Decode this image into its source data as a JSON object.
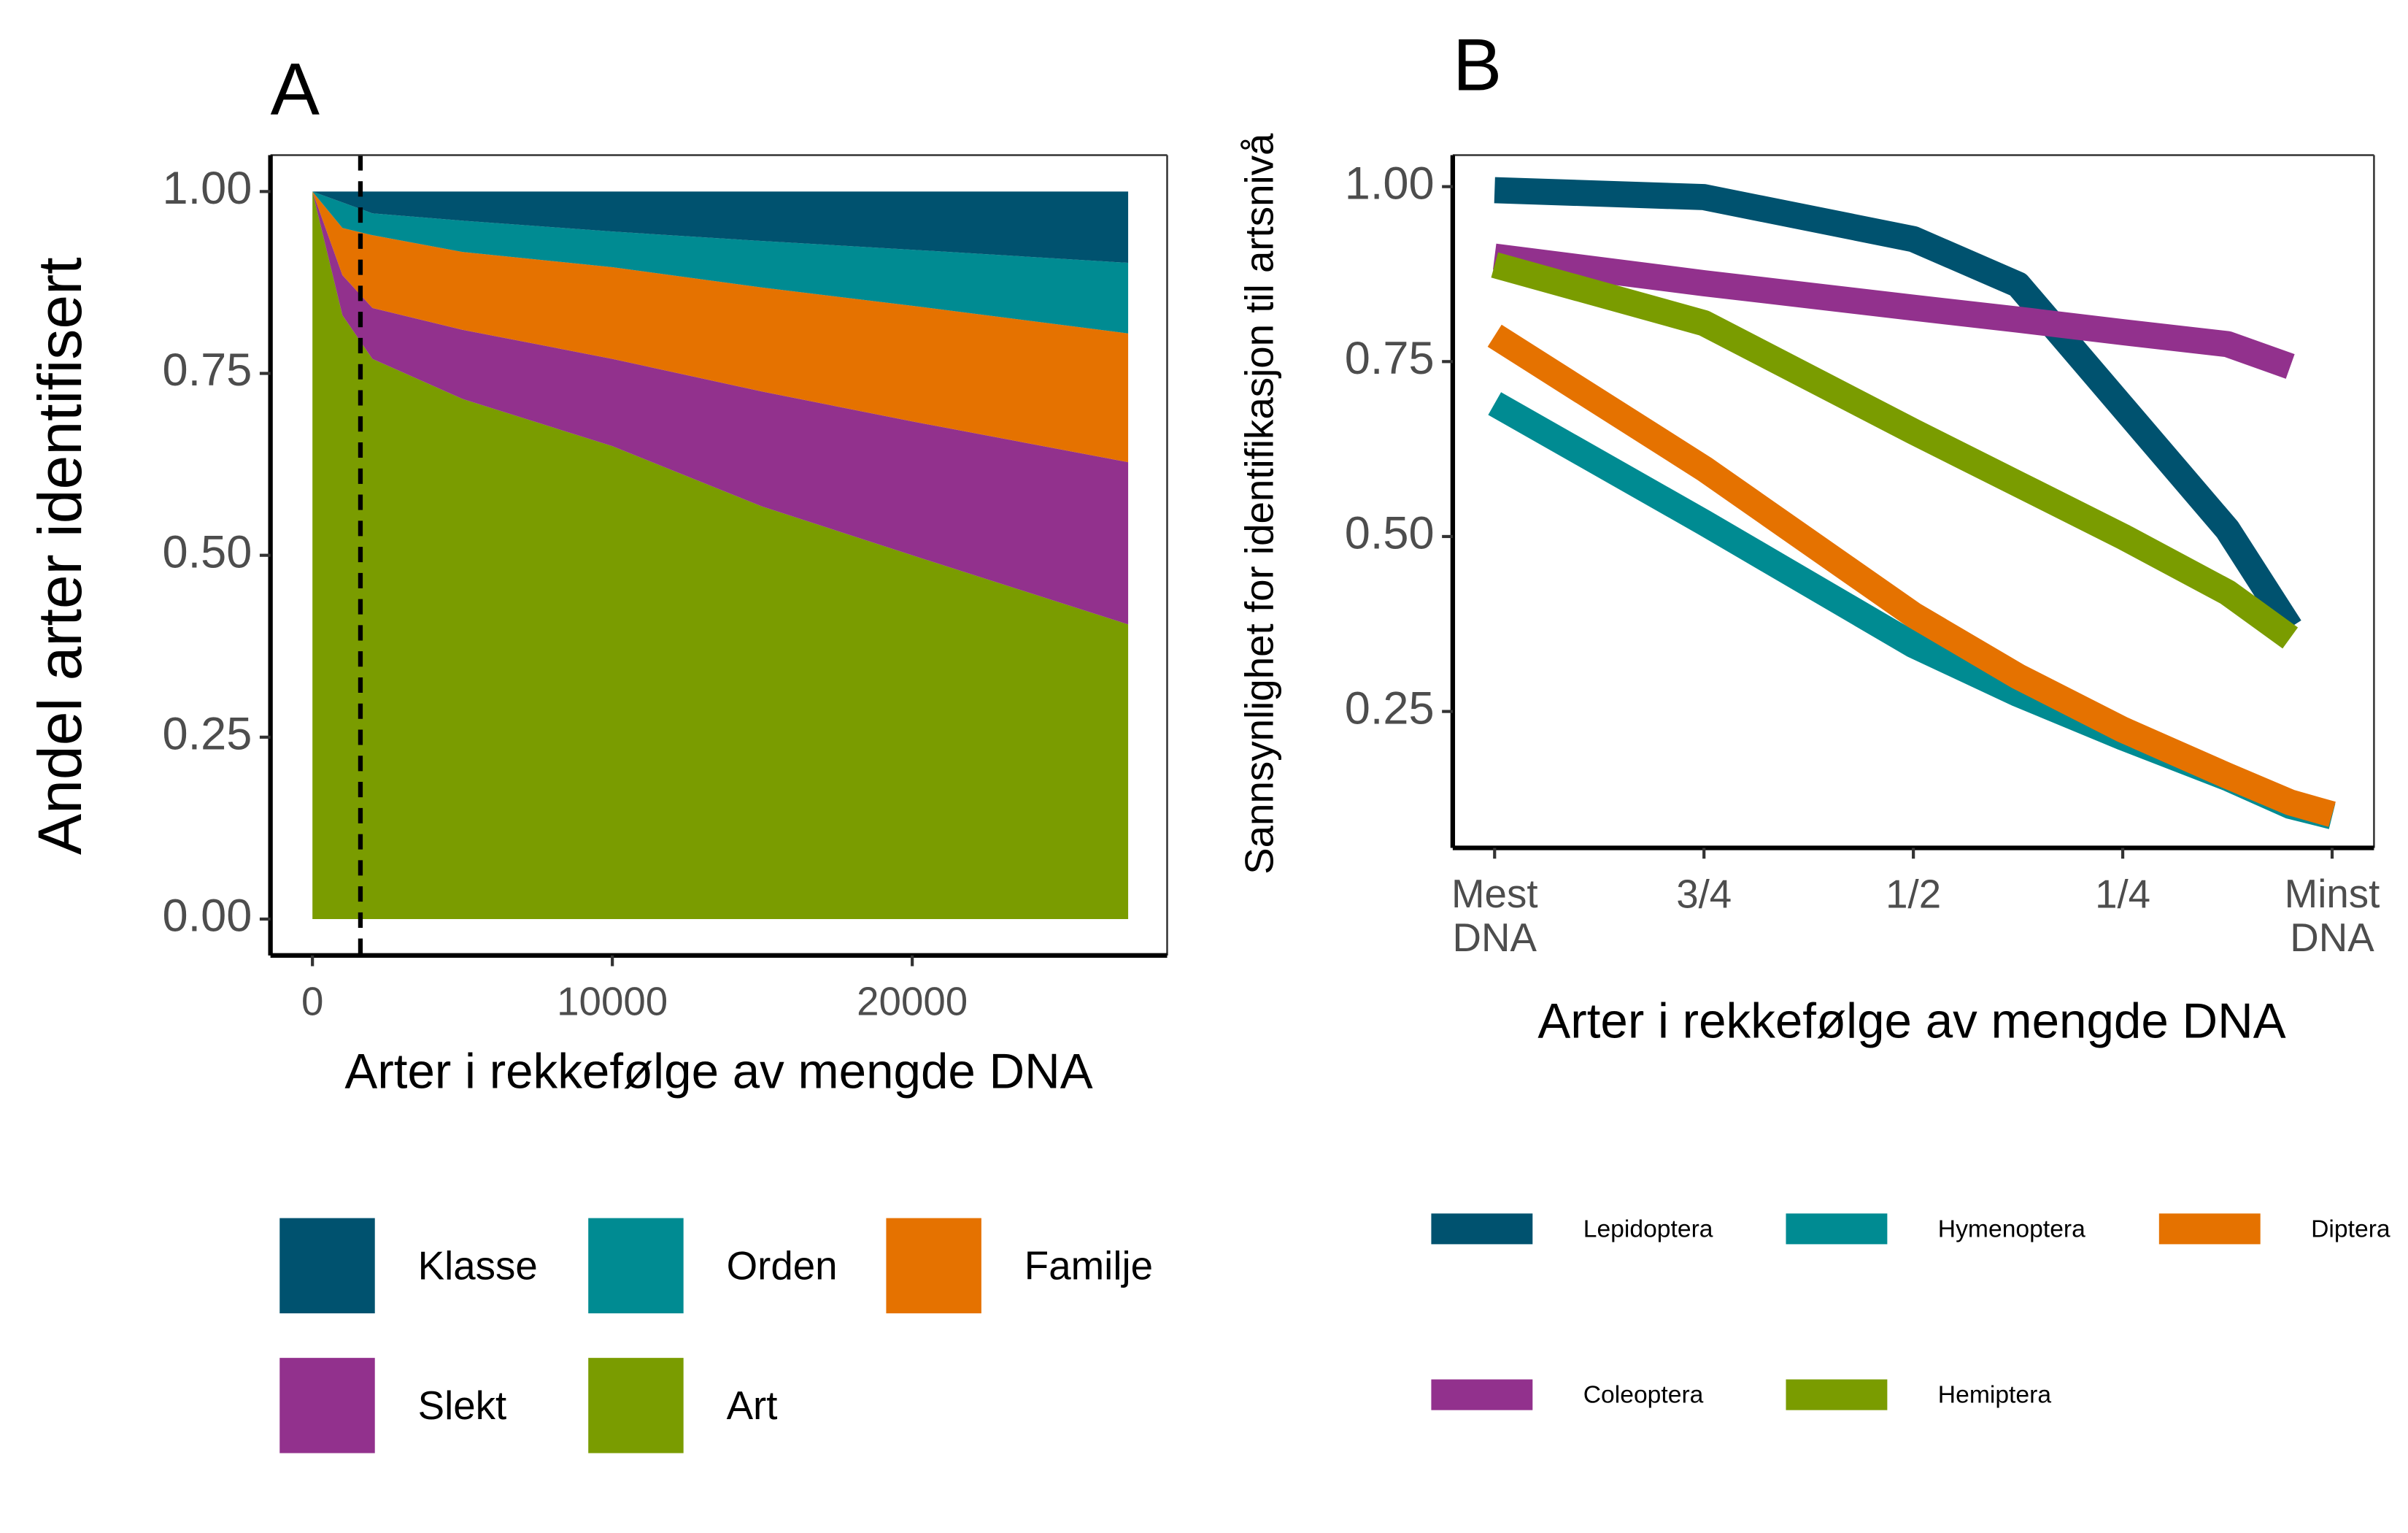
{
  "chart_data": [
    {
      "type": "stacked_area",
      "panel_label": "A",
      "x_label": "Arter i rekkefølge av mengde DNA",
      "y_label": "Andel arter identifisert",
      "x": [
        0,
        1000,
        2000,
        5000,
        10000,
        15000,
        20000,
        27200
      ],
      "series": [
        {
          "name": "Klasse",
          "color": "#00526f",
          "values": [
            0,
            0.015,
            0.03,
            0.04,
            0.055,
            0.068,
            0.08,
            0.098
          ]
        },
        {
          "name": "Orden",
          "color": "#008b92",
          "values": [
            0,
            0.035,
            0.03,
            0.043,
            0.049,
            0.064,
            0.077,
            0.097
          ]
        },
        {
          "name": "Familje",
          "color": "#e57200",
          "values": [
            0,
            0.065,
            0.1,
            0.107,
            0.126,
            0.143,
            0.159,
            0.177
          ]
        },
        {
          "name": "Slekt",
          "color": "#92318d",
          "values": [
            0,
            0.055,
            0.07,
            0.095,
            0.12,
            0.158,
            0.184,
            0.223
          ]
        },
        {
          "name": "Art",
          "color": "#7a9c00",
          "values": [
            1.0,
            0.83,
            0.77,
            0.715,
            0.65,
            0.567,
            0.5,
            0.405
          ]
        }
      ],
      "vline": 1600,
      "xlim": [
        -1400,
        28500
      ],
      "xticks": [
        0,
        10000,
        20000
      ],
      "ylim": [
        -0.05,
        1.05
      ],
      "yticks": [
        {
          "value": 0,
          "label": "0.00"
        },
        {
          "value": 0.25,
          "label": "0.25"
        },
        {
          "value": 0.5,
          "label": "0.50"
        },
        {
          "value": 0.75,
          "label": "0.75"
        },
        {
          "value": 1,
          "label": "1.00"
        }
      ]
    },
    {
      "type": "line",
      "panel_label": "B",
      "x_label": "Arter i rekkefølge av mengde DNA",
      "y_label": "Sannsynlighet for identifikasjon til artsnivå",
      "x": [
        0,
        0.25,
        0.5,
        0.625,
        0.75,
        0.875,
        0.95,
        1.0
      ],
      "series": [
        {
          "name": "Lepidoptera",
          "color": "#00526f",
          "values": [
            0.995,
            0.985,
            0.925,
            0.86,
            0.685,
            0.51,
            0.37,
            null
          ]
        },
        {
          "name": "Hymenoptera",
          "color": "#008b92",
          "values": [
            0.69,
            0.52,
            0.345,
            0.275,
            0.213,
            0.155,
            0.115,
            0.1
          ]
        },
        {
          "name": "Diptera",
          "color": "#e57200",
          "values": [
            0.787,
            0.597,
            0.388,
            0.3,
            0.224,
            0.158,
            0.12,
            0.103
          ]
        },
        {
          "name": "Coleoptera",
          "color": "#92318d",
          "values": [
            0.9,
            0.862,
            0.827,
            0.81,
            0.792,
            0.775,
            0.743,
            null
          ]
        },
        {
          "name": "Hemiptera",
          "color": "#7a9c00",
          "values": [
            0.888,
            0.805,
            0.65,
            0.575,
            0.5,
            0.42,
            0.355,
            null
          ]
        }
      ],
      "xlim": [
        -0.05,
        1.05
      ],
      "xticks": [
        {
          "value": 0,
          "label": "Mest\nDNA"
        },
        {
          "value": 0.25,
          "label": "3/4"
        },
        {
          "value": 0.5,
          "label": "1/2"
        },
        {
          "value": 0.75,
          "label": "1/4"
        },
        {
          "value": 1,
          "label": "Minst\nDNA"
        }
      ],
      "ylim": [
        0.055,
        1.045
      ],
      "yticks": [
        {
          "value": 0.25,
          "label": "0.25"
        },
        {
          "value": 0.5,
          "label": "0.50"
        },
        {
          "value": 0.75,
          "label": "0.75"
        },
        {
          "value": 1,
          "label": "1.00"
        }
      ]
    }
  ]
}
